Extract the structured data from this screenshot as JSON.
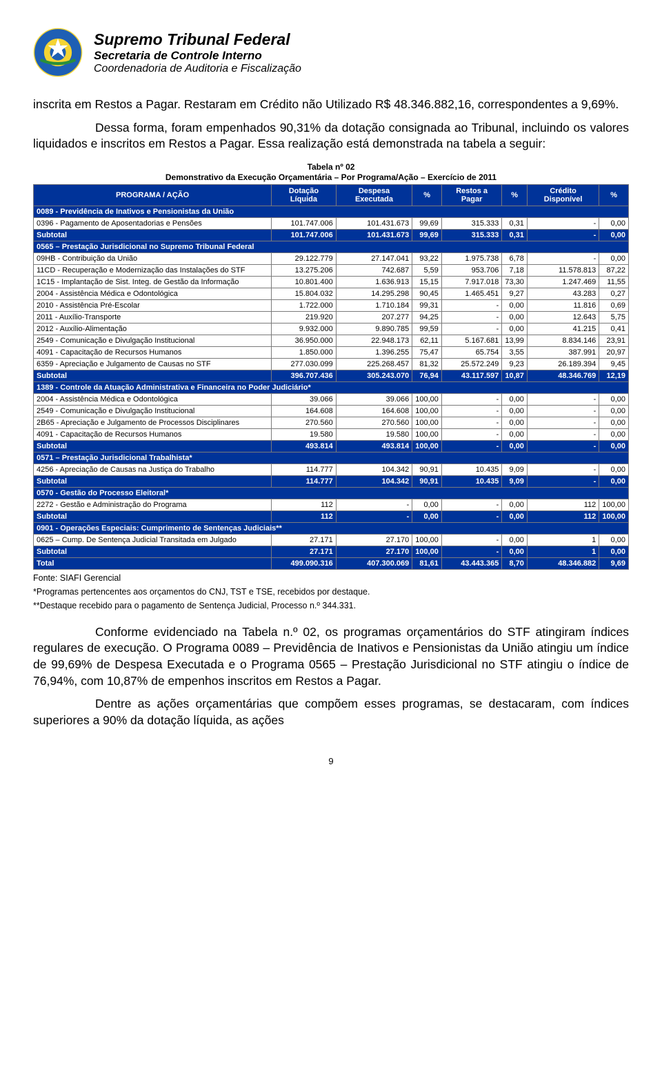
{
  "header": {
    "title": "Supremo Tribunal Federal",
    "subtitle1": "Secretaria de Controle Interno",
    "subtitle2": "Coordenadoria de Auditoria e Fiscalização"
  },
  "para1": "inscrita em Restos a Pagar. Restaram em Crédito não Utilizado R$ 48.346.882,16, correspondentes a 9,69%.",
  "para2": "Dessa forma, foram empenhados 90,31% da dotação consignada ao Tribunal, incluindo os valores liquidados e inscritos em Restos a Pagar. Essa realização está demonstrada na tabela a seguir:",
  "table": {
    "title_l1": "Tabela nº 02",
    "title_l2": "Demonstrativo da Execução Orçamentária – Por Programa/Ação – Exercício de 2011",
    "columns": [
      "PROGRAMA / AÇÃO",
      "Dotação Líquida",
      "Despesa Executada",
      "%",
      "Restos a Pagar",
      "%",
      "Crédito Disponível",
      "%"
    ],
    "groups": [
      {
        "section": "0089 - Previdência de Inativos e Pensionistas da União",
        "rows": [
          [
            "0396 - Pagamento de Aposentadorias e Pensões",
            "101.747.006",
            "101.431.673",
            "99,69",
            "315.333",
            "0,31",
            "-",
            "0,00"
          ]
        ],
        "subtotal": [
          "Subtotal",
          "101.747.006",
          "101.431.673",
          "99,69",
          "315.333",
          "0,31",
          "-",
          "0,00"
        ]
      },
      {
        "section": "0565 – Prestação Jurisdicional no Supremo Tribunal Federal",
        "rows": [
          [
            "09HB - Contribuição da União",
            "29.122.779",
            "27.147.041",
            "93,22",
            "1.975.738",
            "6,78",
            "-",
            "0,00"
          ],
          [
            "11CD - Recuperação e Modernização das Instalações do STF",
            "13.275.206",
            "742.687",
            "5,59",
            "953.706",
            "7,18",
            "11.578.813",
            "87,22"
          ],
          [
            "1C15 - Implantação de Sist. Integ. de Gestão da Informação",
            "10.801.400",
            "1.636.913",
            "15,15",
            "7.917.018",
            "73,30",
            "1.247.469",
            "11,55"
          ],
          [
            "2004 - Assistência Médica e Odontológica",
            "15.804.032",
            "14.295.298",
            "90,45",
            "1.465.451",
            "9,27",
            "43.283",
            "0,27"
          ],
          [
            "2010 - Assistência Pré-Escolar",
            "1.722.000",
            "1.710.184",
            "99,31",
            "-",
            "0,00",
            "11.816",
            "0,69"
          ],
          [
            "2011 - Auxílio-Transporte",
            "219.920",
            "207.277",
            "94,25",
            "-",
            "0,00",
            "12.643",
            "5,75"
          ],
          [
            "2012 - Auxílio-Alimentação",
            "9.932.000",
            "9.890.785",
            "99,59",
            "-",
            "0,00",
            "41.215",
            "0,41"
          ],
          [
            "2549 - Comunicação e Divulgação Institucional",
            "36.950.000",
            "22.948.173",
            "62,11",
            "5.167.681",
            "13,99",
            "8.834.146",
            "23,91"
          ],
          [
            "4091 - Capacitação de Recursos Humanos",
            "1.850.000",
            "1.396.255",
            "75,47",
            "65.754",
            "3,55",
            "387.991",
            "20,97"
          ],
          [
            "6359 - Apreciação e Julgamento de Causas no STF",
            "277.030.099",
            "225.268.457",
            "81,32",
            "25.572.249",
            "9,23",
            "26.189.394",
            "9,45"
          ]
        ],
        "subtotal": [
          "Subtotal",
          "396.707.436",
          "305.243.070",
          "76,94",
          "43.117.597",
          "10,87",
          "48.346.769",
          "12,19"
        ]
      },
      {
        "section": "1389 - Controle da Atuação Administrativa e Financeira no Poder Judiciário*",
        "rows": [
          [
            "2004 - Assistência Médica e Odontológica",
            "39.066",
            "39.066",
            "100,00",
            "-",
            "0,00",
            "-",
            "0,00"
          ],
          [
            "2549 - Comunicação e Divulgação Institucional",
            "164.608",
            "164.608",
            "100,00",
            "-",
            "0,00",
            "-",
            "0,00"
          ],
          [
            "2B65 - Apreciação e Julgamento de Processos Disciplinares",
            "270.560",
            "270.560",
            "100,00",
            "-",
            "0,00",
            "-",
            "0,00"
          ],
          [
            "4091 - Capacitação de Recursos Humanos",
            "19.580",
            "19.580",
            "100,00",
            "-",
            "0,00",
            "-",
            "0,00"
          ]
        ],
        "subtotal": [
          "Subtotal",
          "493.814",
          "493.814",
          "100,00",
          "-",
          "0,00",
          "-",
          "0,00"
        ]
      },
      {
        "section": "0571 – Prestação Jurisdicional Trabalhista*",
        "rows": [
          [
            "4256 - Apreciação de Causas na Justiça do Trabalho",
            "114.777",
            "104.342",
            "90,91",
            "10.435",
            "9,09",
            "-",
            "0,00"
          ]
        ],
        "subtotal": [
          "Subtotal",
          "114.777",
          "104.342",
          "90,91",
          "10.435",
          "9,09",
          "-",
          "0,00"
        ]
      },
      {
        "section": "0570 - Gestão do Processo Eleitoral*",
        "rows": [
          [
            "2272 - Gestão e Administração do Programa",
            "112",
            "-",
            "0,00",
            "-",
            "0,00",
            "112",
            "100,00"
          ]
        ],
        "subtotal": [
          "Subtotal",
          "112",
          "-",
          "0,00",
          "-",
          "0,00",
          "112",
          "100,00"
        ]
      },
      {
        "section": "0901 - Operações Especiais: Cumprimento de Sentenças Judiciais**",
        "rows": [
          [
            "0625 – Cump. De Sentença Judicial Transitada em Julgado",
            "27.171",
            "27.170",
            "100,00",
            "-",
            "0,00",
            "1",
            "0,00"
          ]
        ],
        "subtotal": [
          "Subtotal",
          "27.171",
          "27.170",
          "100,00",
          "-",
          "0,00",
          "1",
          "0,00"
        ]
      }
    ],
    "total": [
      "Total",
      "499.090.316",
      "407.300.069",
      "81,61",
      "43.443.365",
      "8,70",
      "48.346.882",
      "9,69"
    ]
  },
  "footnotes": {
    "source": "Fonte: SIAFI Gerencial",
    "note1": "*Programas pertencentes aos orçamentos do CNJ, TST e TSE, recebidos por destaque.",
    "note2": "**Destaque recebido para o pagamento de Sentença Judicial, Processo n.º 344.331."
  },
  "para3": "Conforme evidenciado na Tabela n.º 02, os programas orçamentários do STF atingiram índices regulares de execução. O Programa 0089 – Previdência de Inativos e Pensionistas da União atingiu um índice de 99,69% de Despesa Executada e o Programa 0565 – Prestação Jurisdicional no STF atingiu o índice de 76,94%, com 10,87% de empenhos inscritos em Restos a Pagar.",
  "para4": "Dentre as ações orçamentárias que compõem esses programas, se destacaram, com índices superiores a 90% da dotação líquida, as ações",
  "page_number": "9",
  "colors": {
    "header_bg": "#003399",
    "header_fg": "#ffffff",
    "border": "#7a7a7a"
  }
}
